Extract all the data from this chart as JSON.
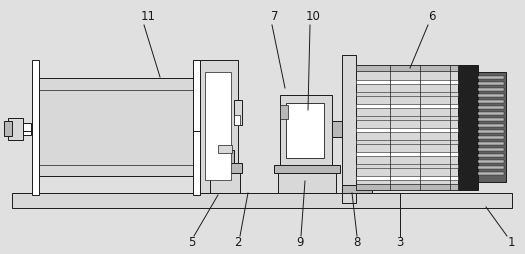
{
  "bg_color": "#e0e0e0",
  "line_color": "#1a1a1a",
  "white": "#ffffff",
  "light_gray": "#d8d8d8",
  "mid_gray": "#b8b8b8",
  "dark_gray": "#606060",
  "very_dark": "#202020",
  "figsize": [
    5.25,
    2.54
  ],
  "dpi": 100
}
